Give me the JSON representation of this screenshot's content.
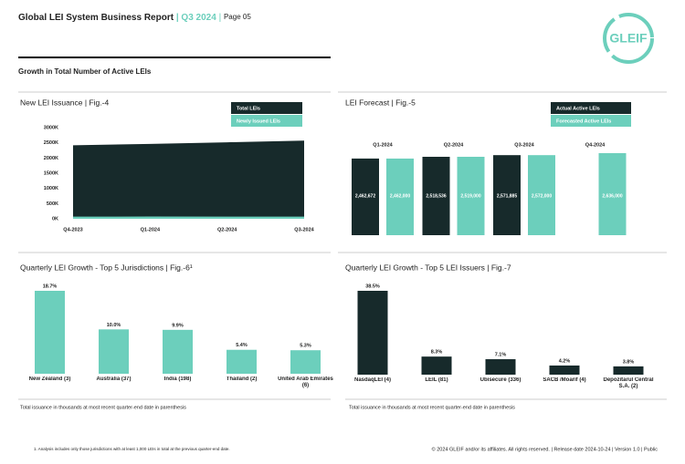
{
  "header": {
    "title": "Global LEI System Business Report",
    "separator": "|",
    "quarter": "Q3 2024",
    "page": "Page 05",
    "logo": "GLEIF"
  },
  "section_title": "Growth in Total Number of Active LEIs",
  "chart_data": [
    {
      "type": "area",
      "title": "New LEI Issuance | Fig.-4",
      "categories": [
        "Q4-2023",
        "Q1-2024",
        "Q2-2024",
        "Q3-2024"
      ],
      "series": [
        {
          "name": "Total LEIs",
          "color": "#172a2b",
          "values": [
            2420,
            2462,
            2518,
            2572
          ]
        },
        {
          "name": "Newly Issued LEIs",
          "color": "#6ccfbc",
          "values": [
            70,
            75,
            70,
            70
          ]
        }
      ],
      "ylim": [
        0,
        3000
      ],
      "yticks": [
        {
          "value": 0,
          "label": "0K"
        },
        {
          "value": 500,
          "label": "500K"
        },
        {
          "value": 1000,
          "label": "1000K"
        },
        {
          "value": 1500,
          "label": "1500K"
        },
        {
          "value": 2000,
          "label": "2000K"
        },
        {
          "value": 2500,
          "label": "2500K"
        },
        {
          "value": 3000,
          "label": "3000K"
        }
      ]
    },
    {
      "type": "bar",
      "title": "LEI Forecast | Fig.-5",
      "categories": [
        "Q1-2024",
        "Q2-2024",
        "Q3-2024",
        "Q4-2024"
      ],
      "series": [
        {
          "name": "Actual Active LEIs",
          "color": "#172a2b",
          "values": [
            2462672,
            2518536,
            2571885,
            null
          ],
          "value_labels": [
            "2,462,672",
            "2,518,536",
            "2,571,885",
            null
          ]
        },
        {
          "name": "Forecasted Active LEIs",
          "color": "#6ccfbc",
          "values": [
            2462000,
            2519000,
            2572000,
            2636000
          ],
          "value_labels": [
            "2,462,000",
            "2,519,000",
            "2,572,000",
            "2,636,000"
          ]
        }
      ]
    },
    {
      "type": "bar",
      "title": "Quarterly LEI Growth - Top 5 Jurisdictions | Fig.-6¹",
      "categories": [
        "New Zealand (3)",
        "Australia (37)",
        "India (198)",
        "Thailand (2)",
        "United Arab Emirates (6)"
      ],
      "color": "#6ccfbc",
      "values": [
        18.7,
        10.0,
        9.9,
        5.4,
        5.3
      ],
      "value_labels": [
        "18.7%",
        "10.0%",
        "9.9%",
        "5.4%",
        "5.3%"
      ]
    },
    {
      "type": "bar",
      "title": "Quarterly LEI Growth - Top 5 LEI Issuers | Fig.-7",
      "categories": [
        "NasdaqLEI (4)",
        "LEIL (81)",
        "Ubisecure (336)",
        "SACB /Moarif (4)",
        "Depozitarul Central S.A. (2)"
      ],
      "color": "#172a2b",
      "values": [
        38.5,
        8.3,
        7.1,
        4.2,
        3.8
      ],
      "value_labels": [
        "38.5%",
        "8.3%",
        "7.1%",
        "4.2%",
        "3.8%"
      ]
    }
  ],
  "notes": [
    "Total issuance in thousands at most recent quarter-end date in parenthesis",
    "Total issuance in thousands at most recent quarter-end date in parenthesis"
  ],
  "footnote": "1. Analysis includes only those jurisdictions with at least 1,000 LEIs in total at the previous quarter-end date.",
  "footer": "© 2024 GLEIF and/or its affiliates. All rights reserved. | Release date 2024-10-24 | Version 1.0 | Public"
}
